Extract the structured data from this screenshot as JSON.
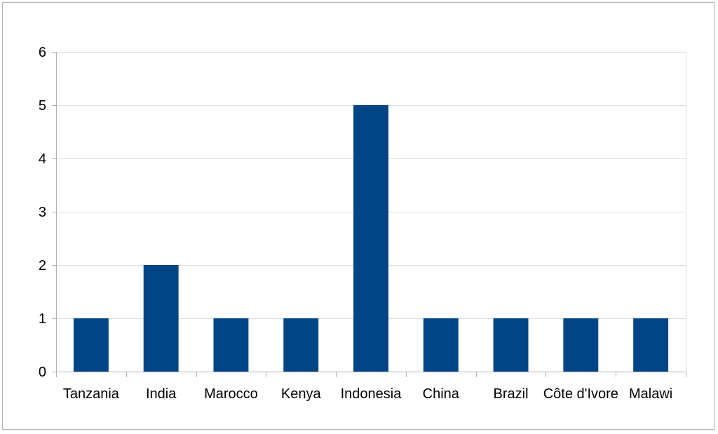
{
  "chart_data": {
    "type": "bar",
    "categories": [
      "Tanzania",
      "India",
      "Marocco",
      "Kenya",
      "Indonesia",
      "China",
      "Brazil",
      "Côte d'Ivore",
      "Malawi"
    ],
    "values": [
      1,
      2,
      1,
      1,
      5,
      1,
      1,
      1,
      1
    ],
    "title": "",
    "xlabel": "",
    "ylabel": "",
    "ylim": [
      0,
      6
    ],
    "yticks": [
      0,
      1,
      2,
      3,
      4,
      5,
      6
    ],
    "grid": true,
    "legend": "none",
    "bar_color": "#004586",
    "grid_color": "#dddddd",
    "axis_color": "#b3b3b3"
  }
}
